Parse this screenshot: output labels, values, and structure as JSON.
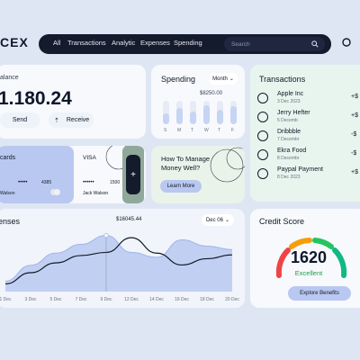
{
  "logo": "CEX",
  "nav": {
    "items": [
      "All",
      "Transactions",
      "Analytic",
      "Expenses",
      "Spending"
    ],
    "search_placeholder": "Search"
  },
  "balance": {
    "label": "alance",
    "amount": "1.180.24",
    "send_label": "Send",
    "receive_label": "Receive"
  },
  "spending": {
    "title": "Spending",
    "period": "Month",
    "value": "$8250.00",
    "days": [
      "S",
      "M",
      "T",
      "W",
      "T",
      "F"
    ],
    "bars": [
      0.45,
      0.7,
      0.55,
      0.8,
      0.6,
      0.75
    ]
  },
  "transactions": {
    "title": "Transactions",
    "items": [
      {
        "name": "Apple Inc",
        "date": "3 Dec 2023",
        "amount": "+$"
      },
      {
        "name": "Jerry Hefter",
        "date": "5 Decemb",
        "amount": "+$"
      },
      {
        "name": "Dribbble",
        "date": "7 Decembr",
        "amount": "-$"
      },
      {
        "name": "Ekra Food",
        "date": "8 Decembr",
        "amount": "-$"
      },
      {
        "name": "Paypal Payment",
        "date": "8 Dec 2023",
        "amount": "+$"
      }
    ]
  },
  "cards": {
    "title": "cards",
    "card1_number": "4385",
    "card1_holder": "Walson",
    "card2_brand": "VISA",
    "card2_number": "1500",
    "card2_holder": "Jack Walson",
    "add_label": "+"
  },
  "promo": {
    "title_line1": "How To Manage",
    "title_line2": "Money Well?",
    "button": "Learn More"
  },
  "expenses": {
    "title": "enses",
    "period": "Dec 06",
    "peak_label": "$16045.44"
  },
  "chart_data": {
    "type": "area",
    "categories": [
      "1 Dec",
      "3 Dec",
      "5 Dec",
      "7 Dec",
      "9 Dec",
      "12 Dec",
      "14 Dec",
      "16 Dec",
      "18 Dec",
      "20 Dec"
    ],
    "series": [
      {
        "values": [
          3000,
          7500,
          11000,
          13500,
          16045,
          11200,
          9800,
          14800,
          13000,
          12000
        ]
      },
      {
        "values": [
          2200,
          5400,
          8200,
          10300,
          11200,
          15400,
          11000,
          7600,
          9400,
          10500
        ]
      }
    ],
    "ylim": [
      0,
      18000
    ],
    "grid": false
  },
  "credit": {
    "title": "Credit Score",
    "score": "1620",
    "rating": "Excellent",
    "button": "Explore Benefits"
  },
  "colors": {
    "accent": "#4b6bd8",
    "nav_bg": "#141b2d",
    "area_fill": "#b9c9f0",
    "gauge": [
      "#ef4444",
      "#f59e0b",
      "#22c55e",
      "#10b981"
    ]
  }
}
